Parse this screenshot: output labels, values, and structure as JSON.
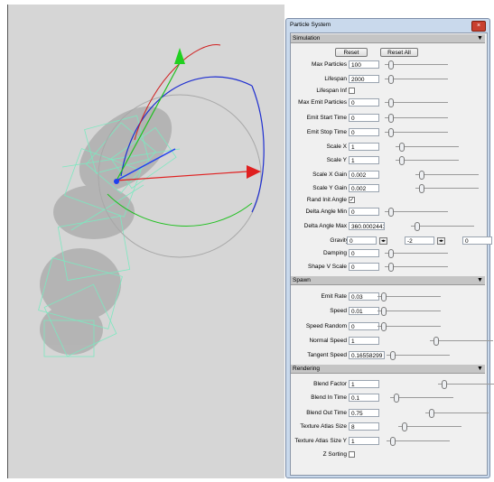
{
  "panel": {
    "title": "Particle System",
    "sections": [
      {
        "title": "Simulation",
        "buttons": [
          "Reset",
          "Reset All"
        ],
        "rows": [
          {
            "label": "Max Particles",
            "value": "100"
          },
          {
            "label": "Lifespan",
            "value": "2000"
          },
          {
            "label": "Lifespan Inf",
            "checked": false
          },
          {
            "label": "Max Emit Particles",
            "value": "0"
          },
          {
            "label": "Emit Start Time",
            "value": "0"
          },
          {
            "label": "Emit Stop Time",
            "value": "0"
          },
          {
            "label": "Scale X",
            "value": "1"
          },
          {
            "label": "Scale Y",
            "value": "1"
          },
          {
            "label": "Scale X Gain",
            "value": "0.002"
          },
          {
            "label": "Scale Y Gain",
            "value": "0.002"
          },
          {
            "label": "Rand Init Angle",
            "checked": true
          },
          {
            "label": "Delta Angle Min",
            "value": "0"
          },
          {
            "label": "Delta Angle Max",
            "value": "360.0002441("
          },
          {
            "label": "Gravity",
            "values": [
              "0",
              "-2",
              "0"
            ]
          },
          {
            "label": "Damping",
            "value": "0"
          },
          {
            "label": "Shape V Scale",
            "value": "0"
          }
        ]
      },
      {
        "title": "Spawn",
        "rows": [
          {
            "label": "Emit Rate",
            "value": "0.03"
          },
          {
            "label": "Speed",
            "value": "0.01"
          },
          {
            "label": "Speed Random",
            "value": "0"
          },
          {
            "label": "Normal Speed",
            "value": "1"
          },
          {
            "label": "Tangent Speed",
            "value": "0.16558299"
          }
        ]
      },
      {
        "title": "Rendering",
        "rows": [
          {
            "label": "Blend Factor",
            "value": "1"
          },
          {
            "label": "Blend In Time",
            "value": "0.1"
          },
          {
            "label": "Blend Out Time",
            "value": "0.75"
          },
          {
            "label": "Texture Atlas Size",
            "value": "8"
          },
          {
            "label": "Texture Atlas Size Y",
            "value": "1"
          },
          {
            "label": "Z Sorting",
            "checked": false
          }
        ]
      }
    ]
  }
}
